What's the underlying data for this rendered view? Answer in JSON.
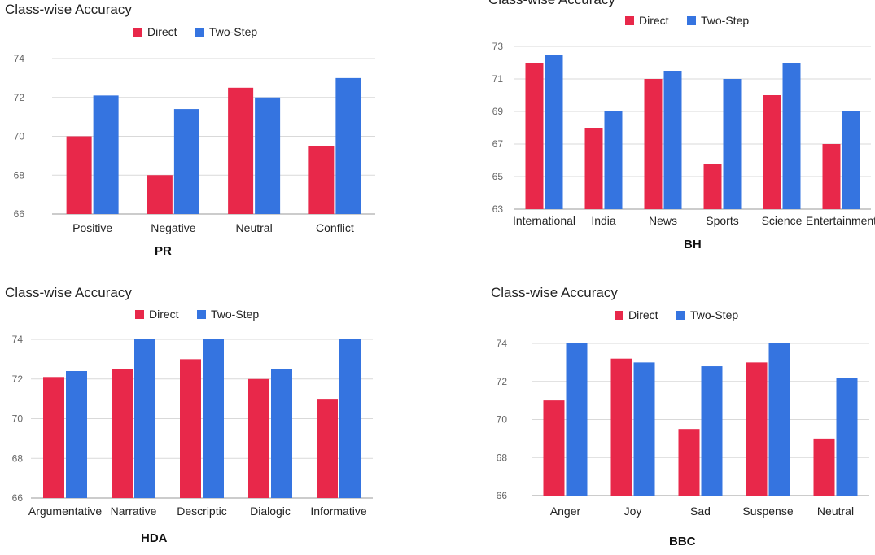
{
  "charts": [
    {
      "id": "pr",
      "title": "Class-wise Accuracy",
      "caption": "PR",
      "legend": [
        "Direct",
        "Two-Step"
      ],
      "chart_data": {
        "type": "bar",
        "categories": [
          "Positive",
          "Negative",
          "Neutral",
          "Conflict"
        ],
        "series": [
          {
            "name": "Direct",
            "values": [
              70.0,
              68.0,
              72.5,
              69.5
            ]
          },
          {
            "name": "Two-Step",
            "values": [
              72.1,
              71.4,
              72.0,
              73.0
            ]
          }
        ],
        "yticks": [
          "66",
          "68",
          "70",
          "72",
          "74"
        ],
        "ylim": [
          66,
          74
        ]
      }
    },
    {
      "id": "bh",
      "title": "Class-wise Accuracy",
      "caption": "BH",
      "legend": [
        "Direct",
        "Two-Step"
      ],
      "chart_data": {
        "type": "bar",
        "categories": [
          "International",
          "India",
          "News",
          "Sports",
          "Science",
          "Entertainment"
        ],
        "series": [
          {
            "name": "Direct",
            "values": [
              72.0,
              68.0,
              71.0,
              65.8,
              70.0,
              67.0
            ]
          },
          {
            "name": "Two-Step",
            "values": [
              72.5,
              69.0,
              71.5,
              71.0,
              72.0,
              69.0
            ]
          }
        ],
        "yticks": [
          "63",
          "65",
          "67",
          "69",
          "71",
          "73"
        ],
        "ylim": [
          63,
          73
        ]
      }
    },
    {
      "id": "hda",
      "title": "Class-wise Accuracy",
      "caption": "HDA",
      "legend": [
        "Direct",
        "Two-Step"
      ],
      "chart_data": {
        "type": "bar",
        "categories": [
          "Argumentative",
          "Narrative",
          "Descriptic",
          "Dialogic",
          "Informative"
        ],
        "series": [
          {
            "name": "Direct",
            "values": [
              72.1,
              72.5,
              73.0,
              72.0,
              71.0
            ]
          },
          {
            "name": "Two-Step",
            "values": [
              72.4,
              74.0,
              74.0,
              72.5,
              74.0
            ]
          }
        ],
        "yticks": [
          "66",
          "68",
          "70",
          "72",
          "74"
        ],
        "ylim": [
          66,
          74
        ]
      }
    },
    {
      "id": "bbc",
      "title": "Class-wise Accuracy",
      "caption": "BBC",
      "legend": [
        "Direct",
        "Two-Step"
      ],
      "chart_data": {
        "type": "bar",
        "categories": [
          "Anger",
          "Joy",
          "Sad",
          "Suspense",
          "Neutral"
        ],
        "series": [
          {
            "name": "Direct",
            "values": [
              71.0,
              73.2,
              69.5,
              73.0,
              69.0
            ]
          },
          {
            "name": "Two-Step",
            "values": [
              74.0,
              73.0,
              72.8,
              74.0,
              72.2
            ]
          }
        ],
        "yticks": [
          "66",
          "68",
          "70",
          "72",
          "74"
        ],
        "ylim": [
          66,
          74
        ]
      }
    }
  ],
  "colors": {
    "direct": "#e8284a",
    "two_step": "#3574e0",
    "grid": "#d9d9d9",
    "axis": "#999999"
  }
}
